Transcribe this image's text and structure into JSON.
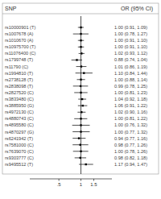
{
  "chart_data": {
    "type": "forest",
    "column_headers": [
      "SNP",
      "OR (95% CI)"
    ],
    "categories": [
      "rs10000901 (T)",
      "rs1007678 (A)",
      "rs1010670 (A)",
      "rs10975700 (T)",
      "rs11076400 (C)",
      "rs1799748 (T)",
      "rs11790 (C)",
      "rs1994810 (T)",
      "rs2738128 (T)",
      "rs2838098 (T)",
      "rs2827520 (C)",
      "rs3833480 (C)",
      "rs3885950 (G)",
      "rs4972130 (C)",
      "rs4880743 (C)",
      "rs4895580 (C)",
      "rs4870297 (G)",
      "rs6241942 (T)",
      "rs7581000 (C)",
      "rs7639070 (C)",
      "rs9303777 (C)",
      "rs9495512 (T)"
    ],
    "values": [
      1.0,
      1.0,
      1.0,
      1.0,
      1.02,
      0.88,
      1.01,
      1.1,
      1.0,
      0.99,
      1.0,
      1.04,
      1.06,
      1.02,
      1.0,
      1.0,
      1.0,
      0.94,
      0.98,
      1.0,
      0.98,
      1.17
    ],
    "lower": [
      0.91,
      0.78,
      0.91,
      0.91,
      0.93,
      0.74,
      0.86,
      0.84,
      0.88,
      0.78,
      0.81,
      0.92,
      0.91,
      0.9,
      0.81,
      0.76,
      0.77,
      0.77,
      0.77,
      0.78,
      0.82,
      0.94
    ],
    "upper": [
      1.09,
      1.27,
      1.1,
      1.1,
      1.12,
      1.04,
      1.19,
      1.44,
      1.14,
      1.25,
      1.23,
      1.18,
      1.22,
      1.16,
      1.22,
      1.32,
      1.32,
      1.16,
      1.26,
      1.26,
      1.18,
      1.47
    ],
    "value_labels": [
      "1.00 (0.91, 1.09)",
      "1.00 (0.78, 1.27)",
      "1.00 (0.91, 1.10)",
      "1.00 (0.91, 1.10)",
      "1.02 (0.93, 1.12)",
      "0.88 (0.74, 1.04)",
      "1.01 (0.86, 1.19)",
      "1.10 (0.84, 1.44)",
      "1.00 (0.88, 1.14)",
      "0.99 (0.78, 1.25)",
      "1.00 (0.81, 1.23)",
      "1.04 (0.92, 1.18)",
      "1.06 (0.91, 1.22)",
      "1.02 (0.90, 1.16)",
      "1.00 (0.81, 1.22)",
      "1.00 (0.76, 1.32)",
      "1.00 (0.77, 1.32)",
      "0.94 (0.77, 1.16)",
      "0.98 (0.77, 1.26)",
      "1.00 (0.78, 1.26)",
      "0.98 (0.82, 1.18)",
      "1.17 (0.94, 1.47)"
    ],
    "xlim": [
      0.2,
      2.65
    ],
    "xticks": [
      {
        "value": 0.5,
        "label": ".5"
      },
      1,
      1.5
    ],
    "log": "x",
    "color": "#000000",
    "data_labels": true
  }
}
